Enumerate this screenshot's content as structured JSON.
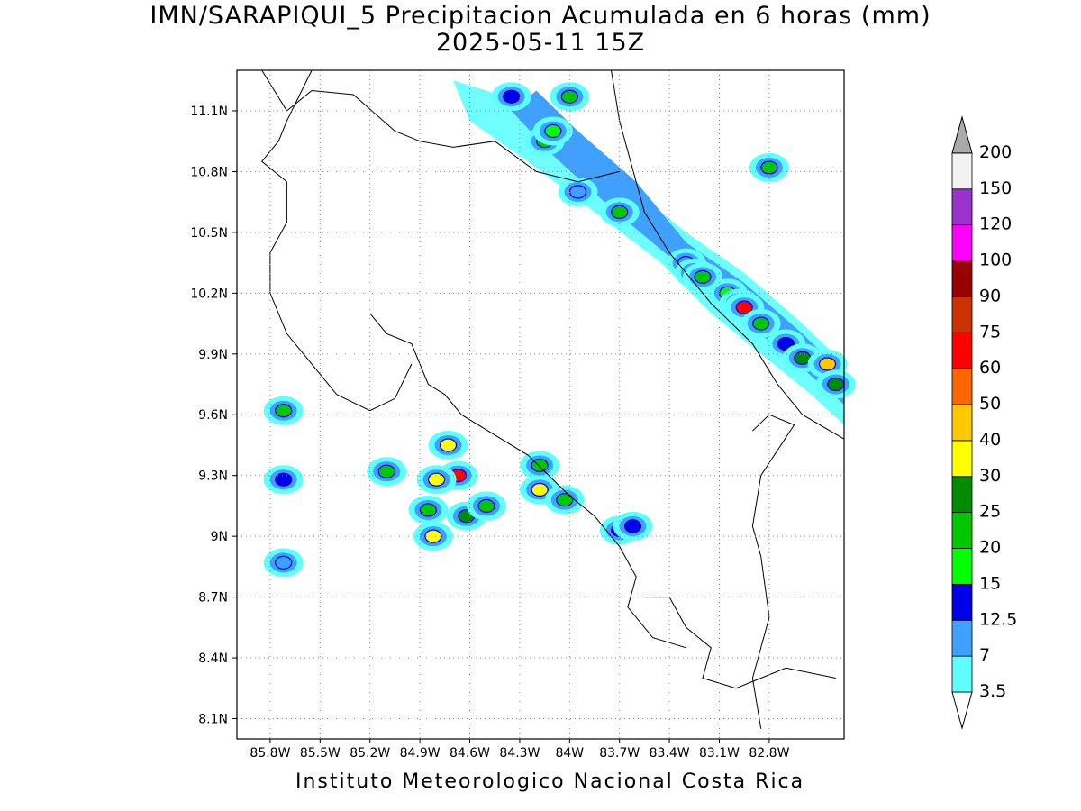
{
  "title": {
    "line1": "IMN/SARAPIQUI_5 Precipitacion Acumulada en 6 horas (mm)",
    "line2": "2025-05-11 15Z"
  },
  "credit": "Instituto Meteorologico Nacional Costa Rica",
  "map": {
    "lon_range": [
      -86.0,
      -82.35
    ],
    "lat_range": [
      8.0,
      11.3
    ],
    "lon_ticks": [
      {
        "value": -85.8,
        "label": "85.8W"
      },
      {
        "value": -85.5,
        "label": "85.5W"
      },
      {
        "value": -85.2,
        "label": "85.2W"
      },
      {
        "value": -84.9,
        "label": "84.9W"
      },
      {
        "value": -84.6,
        "label": "84.6W"
      },
      {
        "value": -84.3,
        "label": "84.3W"
      },
      {
        "value": -84.0,
        "label": "84W"
      },
      {
        "value": -83.7,
        "label": "83.7W"
      },
      {
        "value": -83.4,
        "label": "83.4W"
      },
      {
        "value": -83.1,
        "label": "83.1W"
      },
      {
        "value": -82.8,
        "label": "82.8W"
      }
    ],
    "lat_ticks": [
      {
        "value": 11.1,
        "label": "11.1N"
      },
      {
        "value": 10.8,
        "label": "10.8N"
      },
      {
        "value": 10.5,
        "label": "10.5N"
      },
      {
        "value": 10.2,
        "label": "10.2N"
      },
      {
        "value": 9.9,
        "label": "9.9N"
      },
      {
        "value": 9.6,
        "label": "9.6N"
      },
      {
        "value": 9.3,
        "label": "9.3N"
      },
      {
        "value": 9.0,
        "label": "9N"
      },
      {
        "value": 8.7,
        "label": "8.7N"
      },
      {
        "value": 8.4,
        "label": "8.4N"
      },
      {
        "value": 8.1,
        "label": "8.1N"
      }
    ],
    "grid": true,
    "precip_cells": [
      {
        "lon": -83.3,
        "lat": 10.35,
        "mm": 7
      },
      {
        "lon": -83.25,
        "lat": 10.3,
        "mm": 15
      },
      {
        "lon": -83.2,
        "lat": 10.28,
        "mm": 20
      },
      {
        "lon": -83.05,
        "lat": 10.2,
        "mm": 15
      },
      {
        "lon": -82.98,
        "lat": 10.15,
        "mm": 30
      },
      {
        "lon": -82.95,
        "lat": 10.13,
        "mm": 60
      },
      {
        "lon": -82.85,
        "lat": 10.05,
        "mm": 20
      },
      {
        "lon": -82.7,
        "lat": 9.95,
        "mm": 12.5
      },
      {
        "lon": -82.6,
        "lat": 9.88,
        "mm": 25
      },
      {
        "lon": -82.45,
        "lat": 9.85,
        "mm": 40
      },
      {
        "lon": -82.4,
        "lat": 9.75,
        "mm": 25
      },
      {
        "lon": -83.7,
        "lat": 10.6,
        "mm": 20
      },
      {
        "lon": -83.95,
        "lat": 10.7,
        "mm": 7
      },
      {
        "lon": -84.15,
        "lat": 10.95,
        "mm": 20
      },
      {
        "lon": -84.1,
        "lat": 11.0,
        "mm": 15
      },
      {
        "lon": -84.0,
        "lat": 11.17,
        "mm": 20
      },
      {
        "lon": -84.35,
        "lat": 11.17,
        "mm": 12.5
      },
      {
        "lon": -82.8,
        "lat": 10.82,
        "mm": 20
      },
      {
        "lon": -85.72,
        "lat": 9.62,
        "mm": 20
      },
      {
        "lon": -85.72,
        "lat": 9.28,
        "mm": 12.5
      },
      {
        "lon": -85.72,
        "lat": 8.87,
        "mm": 7
      },
      {
        "lon": -84.73,
        "lat": 9.45,
        "mm": 30
      },
      {
        "lon": -84.67,
        "lat": 9.3,
        "mm": 60
      },
      {
        "lon": -84.8,
        "lat": 9.28,
        "mm": 30
      },
      {
        "lon": -84.85,
        "lat": 9.13,
        "mm": 20
      },
      {
        "lon": -84.82,
        "lat": 9.0,
        "mm": 30
      },
      {
        "lon": -84.62,
        "lat": 9.1,
        "mm": 25
      },
      {
        "lon": -84.5,
        "lat": 9.15,
        "mm": 20
      },
      {
        "lon": -85.1,
        "lat": 9.32,
        "mm": 20
      },
      {
        "lon": -84.18,
        "lat": 9.23,
        "mm": 30
      },
      {
        "lon": -84.18,
        "lat": 9.35,
        "mm": 20
      },
      {
        "lon": -84.03,
        "lat": 9.18,
        "mm": 20
      },
      {
        "lon": -83.7,
        "lat": 9.03,
        "mm": 12.5
      },
      {
        "lon": -83.62,
        "lat": 9.05,
        "mm": 12.5
      }
    ]
  },
  "colorbar": {
    "levels": [
      {
        "label": "3.5",
        "color": "#60ffff"
      },
      {
        "label": "7",
        "color": "#3fa0ff"
      },
      {
        "label": "12.5",
        "color": "#0000e8"
      },
      {
        "label": "15",
        "color": "#00ff00"
      },
      {
        "label": "20",
        "color": "#00c800"
      },
      {
        "label": "25",
        "color": "#008c00"
      },
      {
        "label": "30",
        "color": "#ffff00"
      },
      {
        "label": "40",
        "color": "#ffc800"
      },
      {
        "label": "50",
        "color": "#ff6600"
      },
      {
        "label": "60",
        "color": "#ff0000"
      },
      {
        "label": "75",
        "color": "#cc3300"
      },
      {
        "label": "90",
        "color": "#990000"
      },
      {
        "label": "100",
        "color": "#ff00ff"
      },
      {
        "label": "120",
        "color": "#9933cc"
      },
      {
        "label": "150",
        "color": "#f2f2f2"
      },
      {
        "label": "200",
        "color": "#aaaaaa"
      }
    ]
  }
}
